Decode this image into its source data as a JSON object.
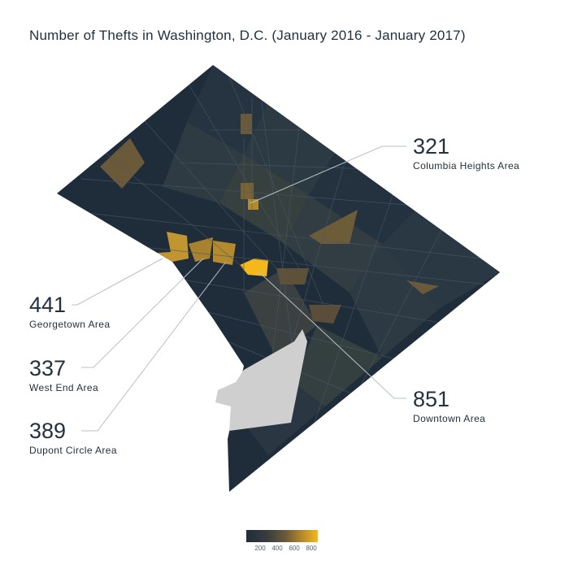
{
  "title": "Number of Thefts in Washington, D.C. (January 2016 - January 2017)",
  "callouts": {
    "columbia_heights": {
      "value": "321",
      "label": "Columbia Heights Area"
    },
    "georgetown": {
      "value": "441",
      "label": "Georgetown Area"
    },
    "west_end": {
      "value": "337",
      "label": "West End Area"
    },
    "dupont_circle": {
      "value": "389",
      "label": "Dupont Circle Area"
    },
    "downtown": {
      "value": "851",
      "label": "Downtown Area"
    }
  },
  "legend": {
    "ticks": [
      "200",
      "400",
      "600",
      "800"
    ],
    "colors": [
      "#1f2d3a",
      "#3a3d3e",
      "#6a5a3a",
      "#b58a2a",
      "#f5b81c"
    ]
  },
  "colors": {
    "low": "#1f2d3a",
    "mid": "#6a5a3a",
    "high": "#f5b81c",
    "water": "#cfcfcf",
    "border": "#4a5866"
  }
}
